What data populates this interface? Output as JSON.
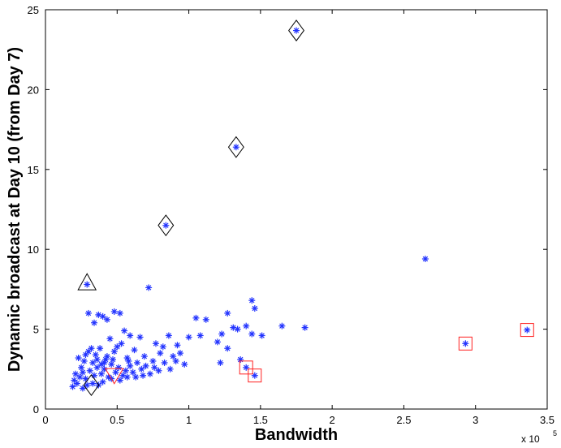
{
  "chart_data": {
    "type": "scatter",
    "xlabel": "Bandwidth",
    "ylabel": "Dynamic broadcast at Day 10 (from Day 7)",
    "x_multiplier_label": "x 10",
    "x_multiplier_exponent": "5",
    "xlim": [
      0,
      3.5
    ],
    "ylim": [
      0,
      25
    ],
    "xticks": [
      0,
      0.5,
      1,
      1.5,
      2,
      2.5,
      3,
      3.5
    ],
    "xtick_labels": [
      "0",
      "0.5",
      "1",
      "1.5",
      "2",
      "2.5",
      "3",
      "3.5"
    ],
    "yticks": [
      0,
      5,
      10,
      15,
      20,
      25
    ],
    "ytick_labels": [
      "0",
      "5",
      "10",
      "15",
      "20",
      "25"
    ],
    "grid": false,
    "x_units_note": "x values in units of 10^5",
    "marker_color": "#2233ff",
    "series": [
      {
        "marker": "asterisk",
        "points": [
          [
            1.75,
            23.7
          ],
          [
            1.33,
            16.4
          ],
          [
            0.84,
            11.5
          ],
          [
            0.29,
            7.8
          ],
          [
            2.65,
            9.4
          ],
          [
            2.93,
            4.1
          ],
          [
            3.36,
            4.95
          ],
          [
            1.4,
            2.6
          ],
          [
            1.46,
            2.1
          ],
          [
            0.72,
            7.6
          ],
          [
            1.44,
            6.8
          ],
          [
            1.46,
            6.3
          ],
          [
            1.27,
            6.0
          ],
          [
            1.12,
            5.6
          ],
          [
            1.31,
            5.1
          ],
          [
            1.34,
            5.0
          ],
          [
            1.4,
            5.2
          ],
          [
            1.44,
            4.7
          ],
          [
            1.51,
            4.6
          ],
          [
            1.65,
            5.2
          ],
          [
            1.81,
            5.1
          ],
          [
            1.05,
            5.7
          ],
          [
            1.23,
            4.7
          ],
          [
            1.08,
            4.6
          ],
          [
            1.0,
            4.5
          ],
          [
            0.92,
            4.0
          ],
          [
            0.86,
            4.6
          ],
          [
            0.82,
            3.9
          ],
          [
            0.77,
            4.1
          ],
          [
            1.2,
            4.2
          ],
          [
            1.27,
            3.8
          ],
          [
            1.36,
            3.1
          ],
          [
            1.22,
            2.9
          ],
          [
            0.97,
            2.8
          ],
          [
            0.89,
            3.3
          ],
          [
            0.8,
            3.5
          ],
          [
            0.75,
            3.0
          ],
          [
            0.69,
            3.3
          ],
          [
            0.66,
            4.5
          ],
          [
            0.62,
            3.7
          ],
          [
            0.57,
            3.2
          ],
          [
            0.53,
            4.1
          ],
          [
            0.48,
            3.6
          ],
          [
            0.45,
            4.4
          ],
          [
            0.42,
            3.1
          ],
          [
            0.38,
            3.8
          ],
          [
            0.35,
            3.4
          ],
          [
            0.33,
            2.9
          ],
          [
            0.3,
            3.6
          ],
          [
            0.27,
            3.0
          ],
          [
            0.25,
            2.6
          ],
          [
            0.23,
            3.2
          ],
          [
            0.21,
            2.2
          ],
          [
            0.2,
            1.8
          ],
          [
            0.19,
            1.4
          ],
          [
            0.22,
            1.6
          ],
          [
            0.24,
            2.0
          ],
          [
            0.26,
            2.3
          ],
          [
            0.28,
            1.9
          ],
          [
            0.31,
            2.4
          ],
          [
            0.34,
            2.1
          ],
          [
            0.36,
            2.6
          ],
          [
            0.39,
            2.2
          ],
          [
            0.41,
            2.5
          ],
          [
            0.44,
            2.0
          ],
          [
            0.46,
            2.8
          ],
          [
            0.49,
            2.3
          ],
          [
            0.51,
            2.6
          ],
          [
            0.54,
            2.1
          ],
          [
            0.56,
            2.4
          ],
          [
            0.59,
            2.7
          ],
          [
            0.61,
            2.3
          ],
          [
            0.64,
            2.9
          ],
          [
            0.67,
            2.5
          ],
          [
            0.7,
            2.7
          ],
          [
            0.73,
            2.2
          ],
          [
            0.76,
            2.6
          ],
          [
            0.79,
            2.4
          ],
          [
            0.83,
            2.9
          ],
          [
            0.87,
            2.5
          ],
          [
            0.91,
            3.0
          ],
          [
            0.94,
            3.5
          ],
          [
            0.3,
            6.0
          ],
          [
            0.34,
            5.4
          ],
          [
            0.37,
            5.9
          ],
          [
            0.4,
            5.8
          ],
          [
            0.43,
            5.6
          ],
          [
            0.48,
            6.1
          ],
          [
            0.52,
            6.0
          ],
          [
            0.55,
            4.9
          ],
          [
            0.59,
            4.6
          ],
          [
            0.5,
            3.9
          ],
          [
            0.46,
            1.9
          ],
          [
            0.4,
            1.7
          ],
          [
            0.37,
            1.5
          ],
          [
            0.33,
            1.6
          ],
          [
            0.29,
            1.5
          ],
          [
            0.26,
            1.3
          ],
          [
            0.52,
            1.8
          ],
          [
            0.57,
            2.0
          ],
          [
            0.63,
            2.0
          ],
          [
            0.68,
            2.1
          ],
          [
            0.32,
            3.8
          ],
          [
            0.28,
            3.4
          ],
          [
            0.43,
            3.3
          ],
          [
            0.39,
            2.8
          ],
          [
            0.36,
            3.1
          ],
          [
            0.47,
            3.1
          ],
          [
            0.41,
            2.9
          ],
          [
            0.58,
            3.0
          ]
        ]
      },
      {
        "marker": "diamond-outline",
        "color": "#000000",
        "points": [
          [
            1.75,
            23.7
          ],
          [
            1.33,
            16.4
          ],
          [
            0.84,
            11.5
          ],
          [
            0.32,
            1.5
          ]
        ]
      },
      {
        "marker": "triangle-up-outline",
        "color": "#000000",
        "points": [
          [
            0.29,
            7.8
          ]
        ]
      },
      {
        "marker": "square-outline",
        "color": "#ff2222",
        "points": [
          [
            1.4,
            2.6
          ],
          [
            1.46,
            2.1
          ],
          [
            2.93,
            4.1
          ],
          [
            3.36,
            4.95
          ]
        ]
      },
      {
        "marker": "triangle-down-outline",
        "color": "#ff2222",
        "points": [
          [
            0.48,
            2.2
          ]
        ]
      }
    ]
  }
}
